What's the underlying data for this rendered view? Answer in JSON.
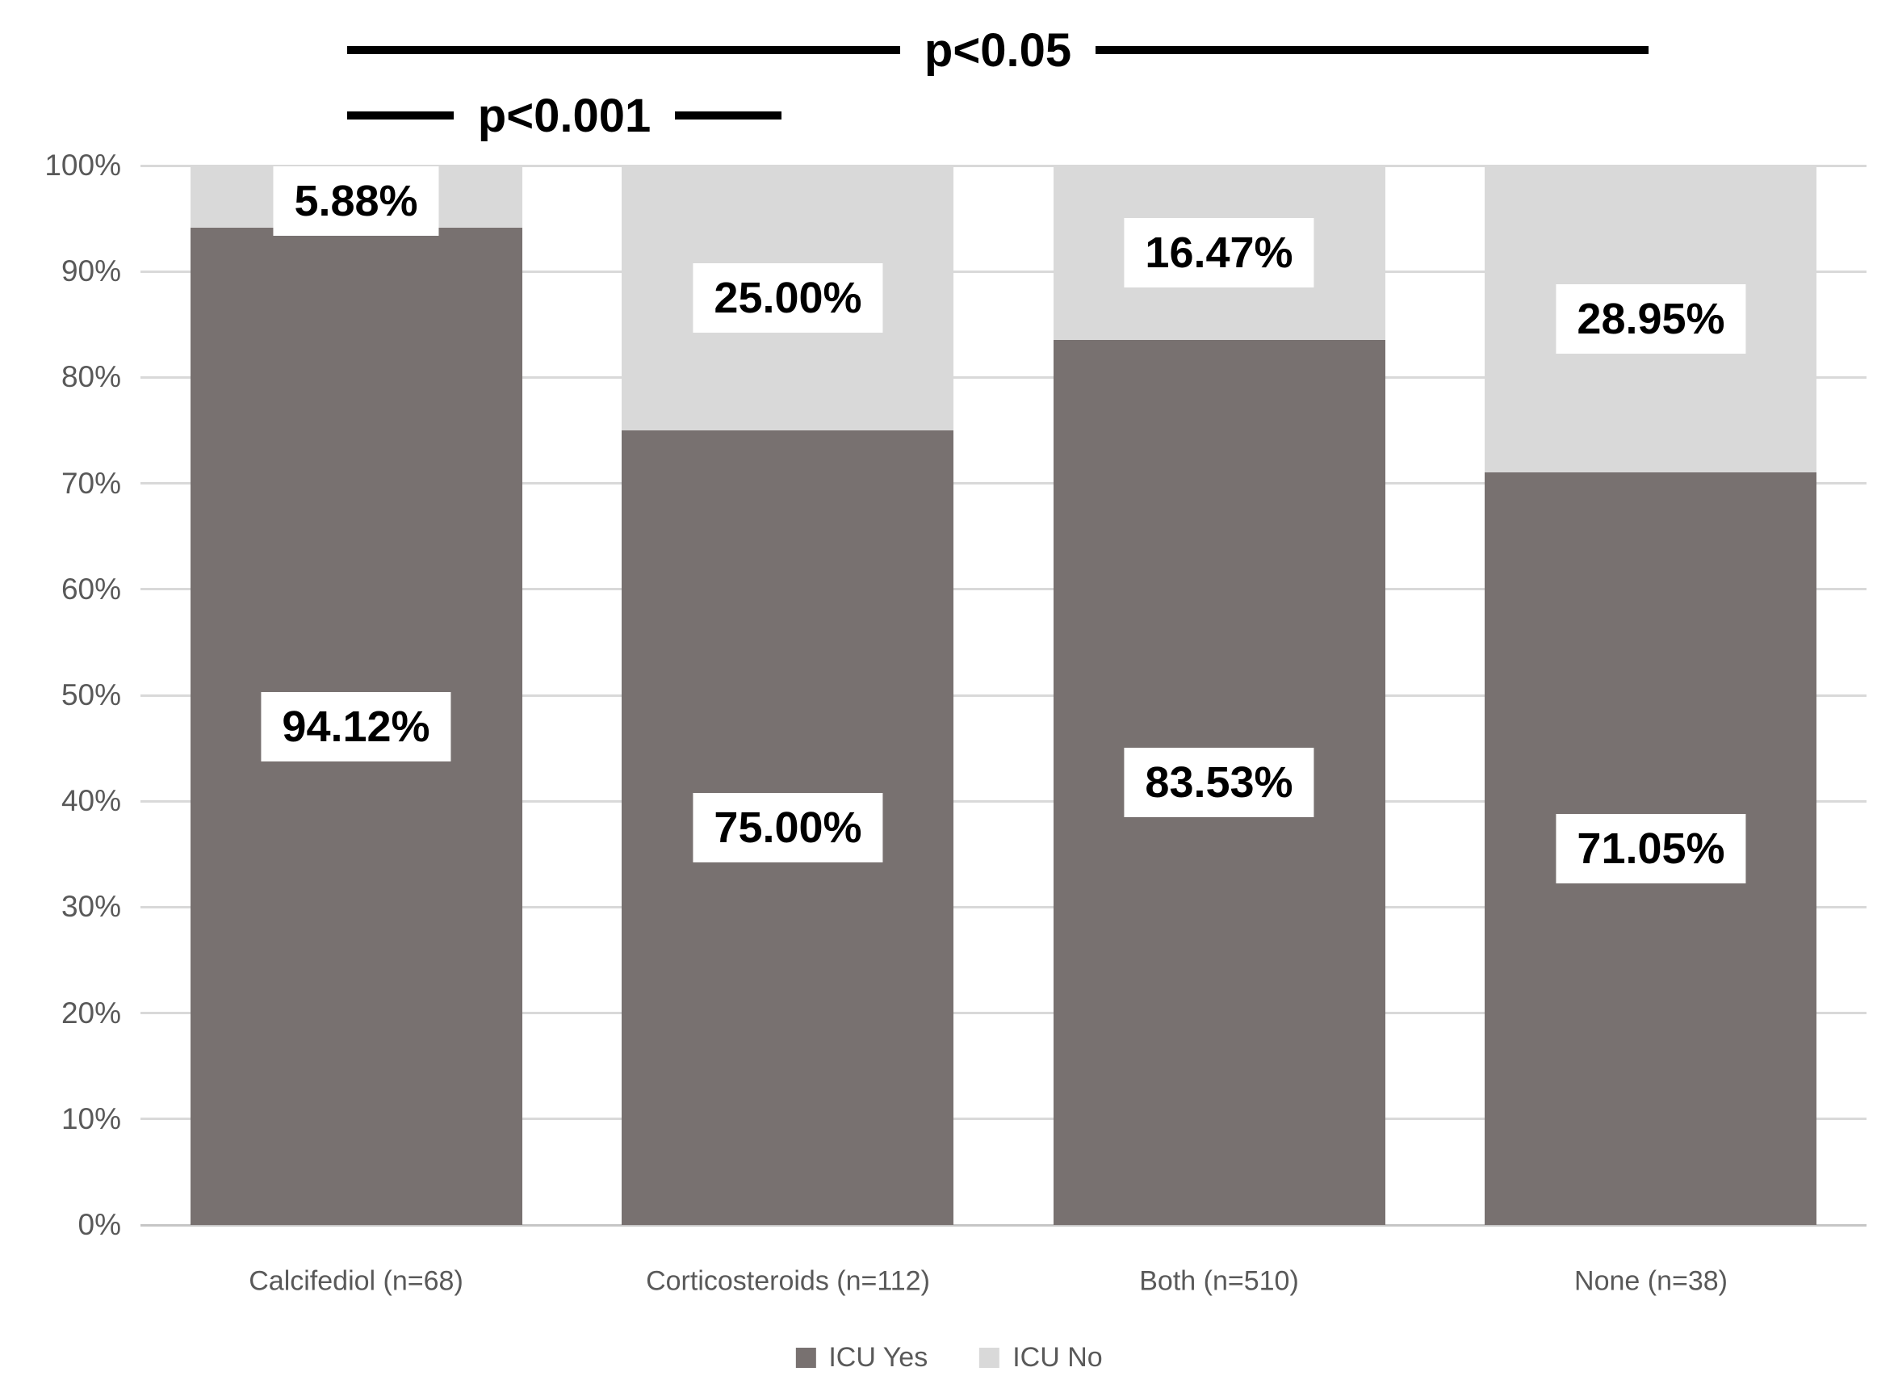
{
  "chart_data": {
    "type": "bar",
    "subtype": "stacked-100-percent",
    "title": "",
    "xlabel": "",
    "ylabel": "",
    "categories": [
      "Calcifediol (n=68)",
      "Corticosteroids (n=112)",
      "Both (n=510)",
      "None (n=38)"
    ],
    "series": [
      {
        "name": "ICU Yes",
        "color": "#787170",
        "values": [
          94.12,
          75.0,
          83.53,
          71.05
        ],
        "labels": [
          "94.12%",
          "75.00%",
          "83.53%",
          "71.05%"
        ]
      },
      {
        "name": "ICU No",
        "color": "#d9d9d9",
        "values": [
          5.88,
          25.0,
          16.47,
          28.95
        ],
        "labels": [
          "5.88%",
          "25.00%",
          "16.47%",
          "28.95%"
        ]
      }
    ],
    "yticks": [
      "0%",
      "10%",
      "20%",
      "30%",
      "40%",
      "50%",
      "60%",
      "70%",
      "80%",
      "90%",
      "100%"
    ],
    "ylim": [
      0,
      100
    ],
    "grid": true,
    "legend_position": "bottom",
    "annotations": [
      {
        "label": "p<0.05",
        "between": [
          "Calcifediol (n=68)",
          "None (n=38)"
        ]
      },
      {
        "label": "p<0.001",
        "between": [
          "Calcifediol (n=68)",
          "Corticosteroids (n=112)"
        ]
      }
    ]
  }
}
